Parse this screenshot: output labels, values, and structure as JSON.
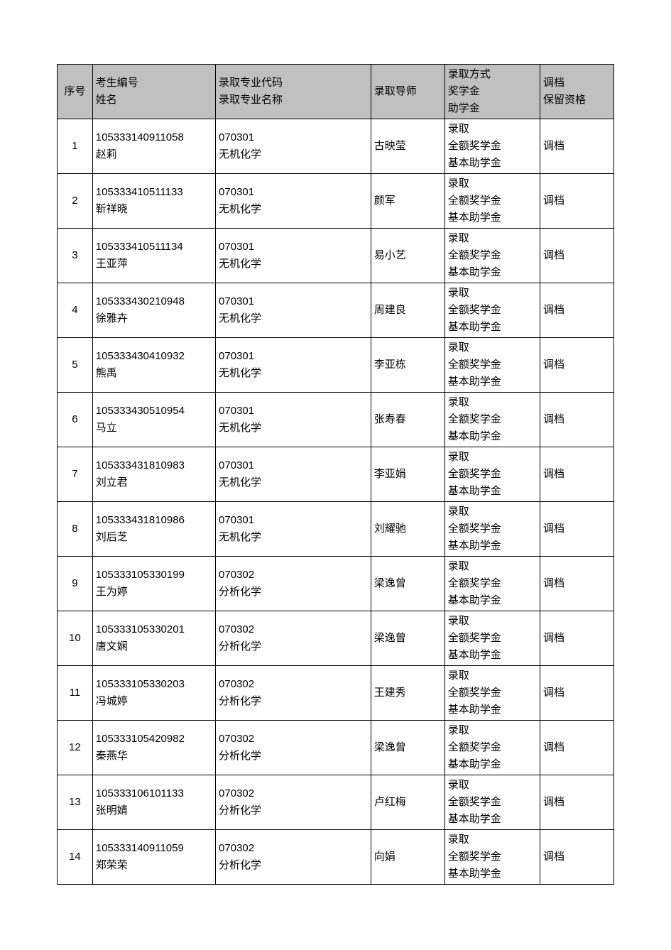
{
  "headers": {
    "seq": "序号",
    "nameTop": "考生编号",
    "nameBottom": "姓名",
    "majorTop": "录取专业代码",
    "majorBottom": "录取专业名称",
    "tutor": "录取导师",
    "admitTop": "录取方式",
    "admitMid": "奖学金",
    "admitBottom": "助学金",
    "fileTop": "调档",
    "fileBottom": "保留资格"
  },
  "rows": [
    {
      "seq": "1",
      "id": "105333140911058",
      "name": "赵莉",
      "majorCode": "070301",
      "majorName": "无机化学",
      "tutor": "古映莹",
      "admit": "录取",
      "scholarship": "全额奖学金",
      "grant": "基本助学金",
      "file": "调档"
    },
    {
      "seq": "2",
      "id": "105333410511133",
      "name": "靳祥晓",
      "majorCode": "070301",
      "majorName": "无机化学",
      "tutor": "颜军",
      "admit": "录取",
      "scholarship": "全额奖学金",
      "grant": "基本助学金",
      "file": "调档"
    },
    {
      "seq": "3",
      "id": "105333410511134",
      "name": "王亚萍",
      "majorCode": "070301",
      "majorName": "无机化学",
      "tutor": "易小艺",
      "admit": "录取",
      "scholarship": "全额奖学金",
      "grant": "基本助学金",
      "file": "调档"
    },
    {
      "seq": "4",
      "id": "105333430210948",
      "name": "徐雅卉",
      "majorCode": "070301",
      "majorName": "无机化学",
      "tutor": "周建良",
      "admit": "录取",
      "scholarship": "全额奖学金",
      "grant": "基本助学金",
      "file": "调档"
    },
    {
      "seq": "5",
      "id": "105333430410932",
      "name": "熊禹",
      "majorCode": "070301",
      "majorName": "无机化学",
      "tutor": "李亚栋",
      "admit": "录取",
      "scholarship": "全额奖学金",
      "grant": "基本助学金",
      "file": "调档"
    },
    {
      "seq": "6",
      "id": "105333430510954",
      "name": "马立",
      "majorCode": "070301",
      "majorName": "无机化学",
      "tutor": "张寿春",
      "admit": "录取",
      "scholarship": "全额奖学金",
      "grant": "基本助学金",
      "file": "调档"
    },
    {
      "seq": "7",
      "id": "105333431810983",
      "name": "刘立君",
      "majorCode": "070301",
      "majorName": "无机化学",
      "tutor": "李亚娟",
      "admit": "录取",
      "scholarship": "全额奖学金",
      "grant": "基本助学金",
      "file": "调档"
    },
    {
      "seq": "8",
      "id": "105333431810986",
      "name": "刘后芝",
      "majorCode": "070301",
      "majorName": "无机化学",
      "tutor": "刘耀驰",
      "admit": "录取",
      "scholarship": "全额奖学金",
      "grant": "基本助学金",
      "file": "调档"
    },
    {
      "seq": "9",
      "id": "105333105330199",
      "name": "王为婷",
      "majorCode": "070302",
      "majorName": "分析化学",
      "tutor": "梁逸曾",
      "admit": "录取",
      "scholarship": "全额奖学金",
      "grant": "基本助学金",
      "file": "调档"
    },
    {
      "seq": "10",
      "id": "105333105330201",
      "name": "唐文娴",
      "majorCode": "070302",
      "majorName": "分析化学",
      "tutor": "梁逸曾",
      "admit": "录取",
      "scholarship": "全额奖学金",
      "grant": "基本助学金",
      "file": "调档"
    },
    {
      "seq": "11",
      "id": "105333105330203",
      "name": "冯城婷",
      "majorCode": "070302",
      "majorName": "分析化学",
      "tutor": "王建秀",
      "admit": "录取",
      "scholarship": "全额奖学金",
      "grant": "基本助学金",
      "file": "调档"
    },
    {
      "seq": "12",
      "id": "105333105420982",
      "name": "秦燕华",
      "majorCode": "070302",
      "majorName": "分析化学",
      "tutor": "梁逸曾",
      "admit": "录取",
      "scholarship": "全额奖学金",
      "grant": "基本助学金",
      "file": "调档"
    },
    {
      "seq": "13",
      "id": "105333106101133",
      "name": "张明婧",
      "majorCode": "070302",
      "majorName": "分析化学",
      "tutor": "卢红梅",
      "admit": "录取",
      "scholarship": "全额奖学金",
      "grant": "基本助学金",
      "file": "调档"
    },
    {
      "seq": "14",
      "id": "105333140911059",
      "name": "郑荣荣",
      "majorCode": "070302",
      "majorName": "分析化学",
      "tutor": "向娟",
      "admit": "录取",
      "scholarship": "全额奖学金",
      "grant": "基本助学金",
      "file": "调档"
    }
  ]
}
